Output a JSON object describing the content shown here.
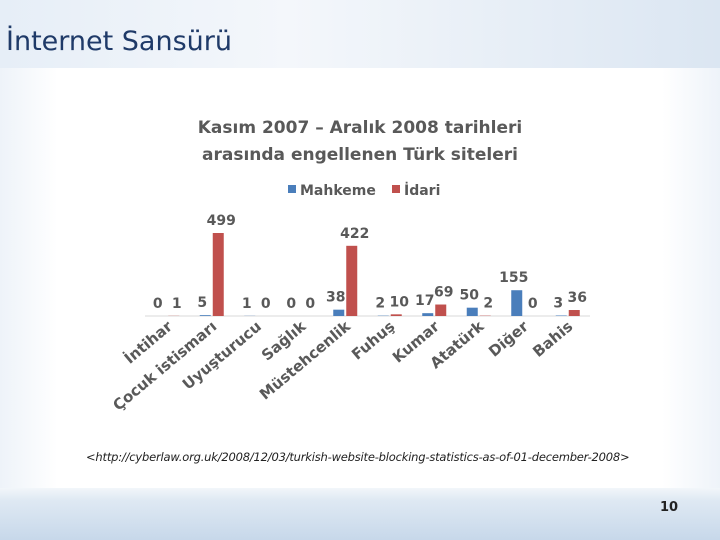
{
  "slide": {
    "title": "İnternet Sansürü",
    "source": "<http://cyberlaw.org.uk/2008/12/03/turkish-website-blocking-statistics-as-of-01-december-2008>",
    "page_number": 10
  },
  "chart_data": {
    "type": "bar",
    "title": [
      "Kasım 2007 – Aralık 2008 tarihleri",
      "arasında engellenen Türk siteleri"
    ],
    "categories": [
      "İntihar",
      "Çocuk istismarı",
      "Uyuşturucu",
      "Sağlık",
      "Müstehcenlik",
      "Fuhuş",
      "Kumar",
      "Atatürk",
      "Diğer",
      "Bahis"
    ],
    "series": [
      {
        "name": "Mahkeme",
        "color": "#4a7ebb",
        "values": [
          0,
          5,
          1,
          0,
          38,
          2,
          17,
          50,
          155,
          3
        ]
      },
      {
        "name": "İdari",
        "color": "#c0504d",
        "values": [
          1,
          499,
          0,
          0,
          422,
          10,
          69,
          2,
          0,
          36
        ]
      }
    ],
    "legend": "top"
  }
}
